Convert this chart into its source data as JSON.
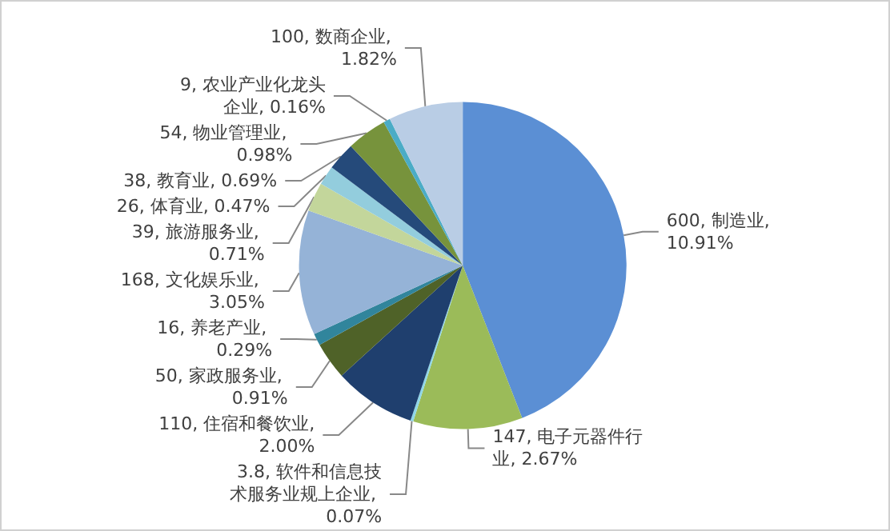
{
  "chart_data": {
    "type": "pie",
    "categories": [
      "600, 制造业, 10.91%",
      "147, 电子元器件行业, 2.67%",
      "3.8, 软件和信息技术服务业规上企业, 0.07%",
      "110, 住宿和餐饮业, 2.00%",
      "50, 家政服务业, 0.91%",
      "16, 养老产业, 0.29%",
      "168, 文化娱乐业, 3.05%",
      "39, 旅游服务业, 0.71%",
      "26, 体育业, 0.47%",
      "38, 教育业, 0.69%",
      "54, 物业管理业, 0.98%",
      "9, 农业产业化龙头企业, 0.16%",
      "100, 数商企业, 1.82%"
    ],
    "values": [
      600,
      147,
      3.8,
      110,
      50,
      16,
      168,
      39,
      26,
      38,
      54,
      9,
      100
    ],
    "colors": [
      "#5b8fd4",
      "#9bbb59",
      "#8fd6e8",
      "#1f3f6e",
      "#4f6228",
      "#31859c",
      "#95b3d7",
      "#c3d69b",
      "#93cddd",
      "#254a7a",
      "#77933c",
      "#4bacc6",
      "#b9cde5"
    ]
  }
}
